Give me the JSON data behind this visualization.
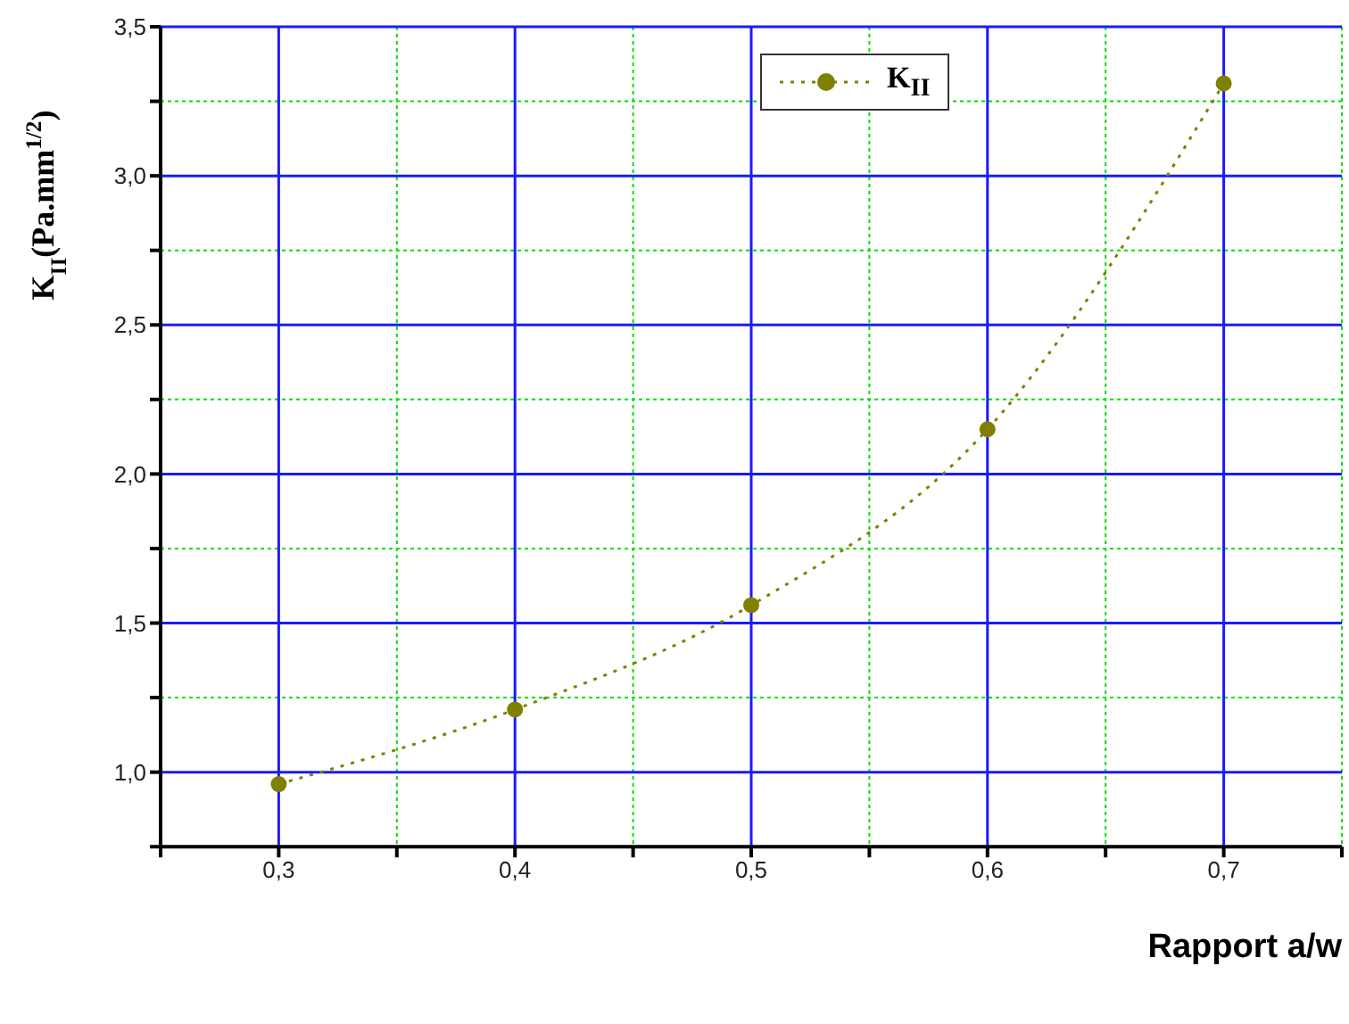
{
  "chart_data": {
    "type": "line",
    "xlabel": "Rapport a/w",
    "ylabel": "K$_{II}$(Pa.mm$^{1/2}$)",
    "x": [
      0.3,
      0.4,
      0.5,
      0.6,
      0.7
    ],
    "series": [
      {
        "name": "K$_{II}$",
        "color": "#808000",
        "values": [
          0.96,
          1.21,
          1.56,
          2.15,
          3.31
        ]
      }
    ],
    "xlim": [
      0.25,
      0.75
    ],
    "xticks": [
      {
        "value": 0.25,
        "label": null
      },
      {
        "value": 0.3,
        "label": "0,3"
      },
      {
        "value": 0.35,
        "label": null
      },
      {
        "value": 0.4,
        "label": "0,4"
      },
      {
        "value": 0.45,
        "label": null
      },
      {
        "value": 0.5,
        "label": "0,5"
      },
      {
        "value": 0.55,
        "label": null
      },
      {
        "value": 0.6,
        "label": "0,6"
      },
      {
        "value": 0.65,
        "label": null
      },
      {
        "value": 0.7,
        "label": "0,7"
      },
      {
        "value": 0.75,
        "label": null
      }
    ],
    "ylim": [
      0.75,
      3.5
    ],
    "yticks": [
      {
        "value": 0.75,
        "label": null
      },
      {
        "value": 1.0,
        "label": "1,0"
      },
      {
        "value": 1.25,
        "label": null
      },
      {
        "value": 1.5,
        "label": "1,5"
      },
      {
        "value": 1.75,
        "label": null
      },
      {
        "value": 2.0,
        "label": "2,0"
      },
      {
        "value": 2.25,
        "label": null
      },
      {
        "value": 2.5,
        "label": "2,5"
      },
      {
        "value": 2.75,
        "label": null
      },
      {
        "value": 3.0,
        "label": "3,0"
      },
      {
        "value": 3.25,
        "label": null
      },
      {
        "value": 3.5,
        "label": "3,5"
      }
    ],
    "grid": true,
    "legend": "top right",
    "marker": "circle",
    "line_style": "dotted"
  }
}
